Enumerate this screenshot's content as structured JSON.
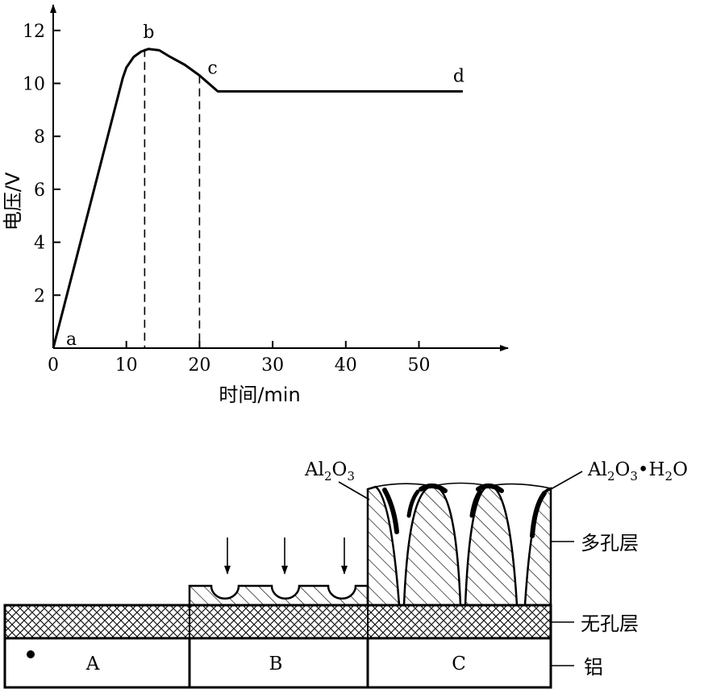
{
  "chart_data": {
    "type": "line",
    "xlabel": "时间/min",
    "ylabel": "电压/V",
    "x_ticks": [
      0,
      10,
      20,
      30,
      40,
      50
    ],
    "y_ticks": [
      2,
      4,
      6,
      8,
      10,
      12
    ],
    "xlim": [
      0,
      60
    ],
    "ylim": [
      0,
      13
    ],
    "series": [
      {
        "x": [
          0,
          9.5,
          10,
          11,
          12,
          13,
          14.5,
          16,
          18,
          20,
          22.5,
          56
        ],
        "y": [
          0,
          10.2,
          10.6,
          11.0,
          11.2,
          11.3,
          11.25,
          11.0,
          10.7,
          10.3,
          9.7,
          9.7
        ]
      }
    ],
    "guides_x": [
      12.5,
      20
    ],
    "point_labels": [
      {
        "text": "a",
        "x": 0,
        "y": 0
      },
      {
        "text": "b",
        "x": 12.5,
        "y": 11.3
      },
      {
        "text": "c",
        "x": 20,
        "y": 10.3
      },
      {
        "text": "d",
        "x": 56,
        "y": 9.7
      }
    ]
  },
  "diagram": {
    "regions": [
      "A",
      "B",
      "C"
    ],
    "layers": {
      "porous": "多孔层",
      "barrier": "无孔层",
      "aluminum": "铝"
    },
    "formula_left": {
      "main": "Al",
      "sub1": "2",
      "mid": "O",
      "sub2": "3"
    },
    "formula_right": {
      "p1": "Al",
      "s1": "2",
      "p2": "O",
      "s2": "3",
      "p3": "•H",
      "s3": "2",
      "p4": "O"
    }
  }
}
